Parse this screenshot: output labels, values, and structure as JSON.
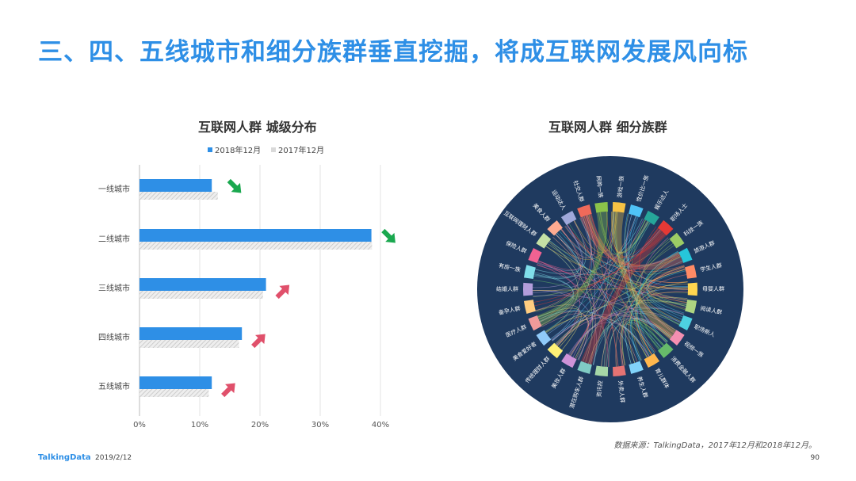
{
  "slide_title": "三、四、五线城市和细分族群垂直挖掘，将成互联网发展风向标",
  "source_note": "数据来源：TalkingData，2017年12月和2018年12月。",
  "footer": {
    "logo": "TalkingData",
    "date": "2019/2/12",
    "page": "90"
  },
  "colors": {
    "accent": "#2e8fe6",
    "series2017": "#d9d9d9",
    "down": "#1aa84f",
    "up": "#e0506b",
    "chord_bg": "#1f3a5f"
  },
  "chart_data": [
    {
      "type": "bar",
      "orientation": "horizontal",
      "title": "互联网人群  城级分布",
      "categories": [
        "一线城市",
        "二线城市",
        "三线城市",
        "四线城市",
        "五线城市"
      ],
      "series": [
        {
          "name": "2018年12月",
          "values": [
            12,
            38.5,
            21,
            17,
            12
          ]
        },
        {
          "name": "2017年12月",
          "values": [
            13,
            38.6,
            20.5,
            16.5,
            11.5
          ]
        }
      ],
      "trend": [
        "down",
        "down",
        "up",
        "up",
        "up"
      ],
      "xlim": [
        0,
        40
      ],
      "xticks": [
        "0%",
        "10%",
        "20%",
        "30%",
        "40%"
      ],
      "legend": "top",
      "grid": true
    },
    {
      "type": "chord",
      "title": "互联网人群  细分族群",
      "groups": [
        "社交人群",
        "网购一族",
        "游戏一族",
        "性价比一族",
        "娱乐达人",
        "职场人士",
        "科技一族",
        "旅游人群",
        "学生人群",
        "母婴人群",
        "阅读人群",
        "职场新人",
        "视频一族",
        "消费金融人群",
        "育儿群体",
        "养生人群",
        "外卖人群",
        "资讯控",
        "潜在购车人群",
        "美妆人群",
        "传统理财人群",
        "美食爱好者",
        "医疗人群",
        "备孕人群",
        "结婚人群",
        "有房一族",
        "保险人群",
        "互联网理财人群",
        "美食人群",
        "运动达人"
      ]
    }
  ]
}
